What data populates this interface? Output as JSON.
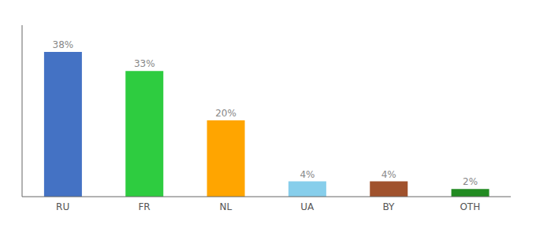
{
  "chart_data": {
    "type": "bar",
    "categories": [
      "RU",
      "FR",
      "NL",
      "UA",
      "BY",
      "OTH"
    ],
    "values": [
      38,
      33,
      20,
      4,
      4,
      2
    ],
    "value_labels": [
      "38%",
      "33%",
      "20%",
      "4%",
      "4%",
      "2%"
    ],
    "colors": [
      "#4472C4",
      "#2ECC40",
      "#FFA500",
      "#87CEEB",
      "#A0522D",
      "#228B22"
    ],
    "ylim": [
      0,
      45
    ],
    "grid": false,
    "data_labels": true,
    "tick_labels": "x"
  }
}
